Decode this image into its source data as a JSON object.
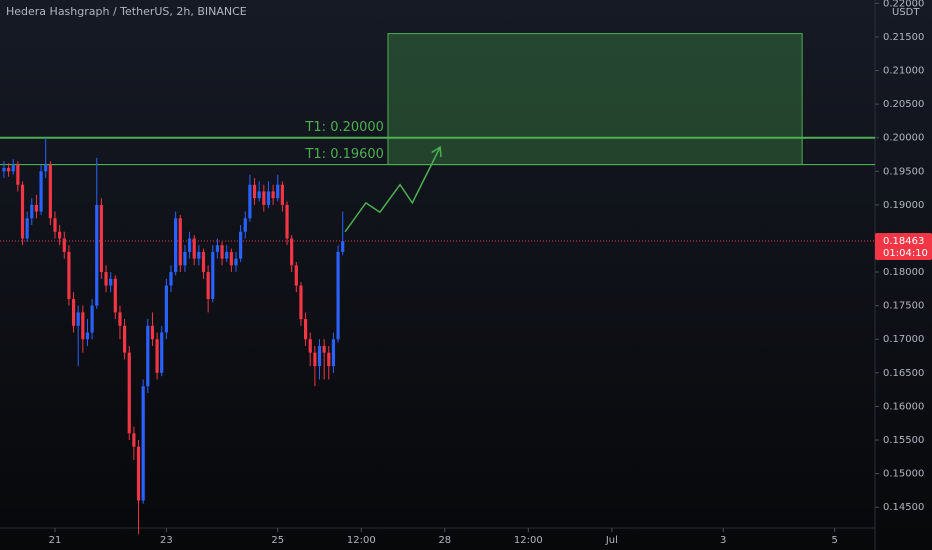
{
  "chart_data": {
    "type": "candlestick",
    "title": "Hedera Hashgraph / TetherUS, 2h, BINANCE",
    "y_axis_label": "USDT",
    "up_color": "#2962ff",
    "down_color": "#f23645",
    "x": [
      -22,
      -20,
      -18,
      -16,
      -14,
      -12,
      -10,
      -8,
      -6,
      -4,
      -2,
      0,
      2,
      4,
      6,
      8,
      10,
      12,
      14,
      16,
      18,
      20,
      22,
      24,
      26,
      28,
      30,
      32,
      34,
      36,
      38,
      40,
      42,
      44,
      46,
      48,
      50,
      52,
      54,
      56,
      58,
      60,
      62,
      64,
      66,
      68,
      70,
      72,
      74,
      76,
      78,
      80,
      82,
      84,
      86,
      88,
      90,
      92,
      94,
      96,
      98,
      100,
      102,
      104,
      106,
      108,
      110,
      112,
      114,
      116,
      118,
      120,
      122,
      124
    ],
    "open": [
      0.195,
      0.1955,
      0.195,
      0.196,
      0.193,
      0.185,
      0.188,
      0.19,
      0.189,
      0.195,
      0.196,
      0.188,
      0.186,
      0.185,
      0.183,
      0.176,
      0.172,
      0.174,
      0.17,
      0.171,
      0.175,
      0.19,
      0.18,
      0.178,
      0.179,
      0.174,
      0.172,
      0.168,
      0.156,
      0.154,
      0.146,
      0.163,
      0.172,
      0.17,
      0.165,
      0.171,
      0.178,
      0.18,
      0.188,
      0.181,
      0.183,
      0.185,
      0.182,
      0.183,
      0.18,
      0.176,
      0.183,
      0.184,
      0.182,
      0.183,
      0.181,
      0.182,
      0.186,
      0.188,
      0.193,
      0.191,
      0.192,
      0.19,
      0.192,
      0.191,
      0.193,
      0.19,
      0.185,
      0.181,
      0.178,
      0.173,
      0.17,
      0.168,
      0.166,
      0.169,
      0.168,
      0.166,
      0.17,
      0.183
    ],
    "high": [
      0.1965,
      0.1962,
      0.1968,
      0.1965,
      0.1935,
      0.189,
      0.191,
      0.1915,
      0.196,
      0.2,
      0.1965,
      0.189,
      0.187,
      0.186,
      0.184,
      0.177,
      0.175,
      0.175,
      0.173,
      0.176,
      0.197,
      0.191,
      0.181,
      0.18,
      0.1795,
      0.175,
      0.173,
      0.169,
      0.157,
      0.155,
      0.164,
      0.173,
      0.174,
      0.171,
      0.172,
      0.179,
      0.181,
      0.189,
      0.1885,
      0.184,
      0.186,
      0.1855,
      0.184,
      0.1835,
      0.181,
      0.184,
      0.185,
      0.1845,
      0.184,
      0.1835,
      0.183,
      0.187,
      0.189,
      0.1945,
      0.194,
      0.1935,
      0.193,
      0.1935,
      0.193,
      0.1945,
      0.1935,
      0.1905,
      0.1855,
      0.1815,
      0.1785,
      0.174,
      0.171,
      0.169,
      0.17,
      0.17,
      0.169,
      0.171,
      0.184,
      0.189
    ],
    "low": [
      0.194,
      0.1942,
      0.1945,
      0.192,
      0.184,
      0.1845,
      0.187,
      0.188,
      0.1885,
      0.194,
      0.187,
      0.185,
      0.184,
      0.182,
      0.175,
      0.171,
      0.166,
      0.168,
      0.169,
      0.17,
      0.1745,
      0.179,
      0.177,
      0.177,
      0.173,
      0.17,
      0.167,
      0.155,
      0.152,
      0.141,
      0.1455,
      0.162,
      0.169,
      0.164,
      0.1645,
      0.17,
      0.177,
      0.1795,
      0.18,
      0.18,
      0.182,
      0.181,
      0.181,
      0.179,
      0.174,
      0.1755,
      0.182,
      0.181,
      0.1815,
      0.18,
      0.18,
      0.1815,
      0.185,
      0.1875,
      0.19,
      0.1905,
      0.189,
      0.1895,
      0.19,
      0.1905,
      0.189,
      0.184,
      0.18,
      0.177,
      0.172,
      0.169,
      0.166,
      0.163,
      0.164,
      0.164,
      0.164,
      0.165,
      0.1695,
      0.1825
    ],
    "close": [
      0.1955,
      0.195,
      0.196,
      0.193,
      0.185,
      0.188,
      0.19,
      0.189,
      0.195,
      0.196,
      0.188,
      0.186,
      0.185,
      0.183,
      0.176,
      0.172,
      0.174,
      0.17,
      0.171,
      0.175,
      0.19,
      0.18,
      0.178,
      0.179,
      0.174,
      0.172,
      0.168,
      0.156,
      0.154,
      0.146,
      0.163,
      0.172,
      0.17,
      0.165,
      0.171,
      0.178,
      0.18,
      0.188,
      0.181,
      0.183,
      0.185,
      0.182,
      0.183,
      0.18,
      0.176,
      0.183,
      0.184,
      0.182,
      0.183,
      0.181,
      0.182,
      0.186,
      0.188,
      0.193,
      0.191,
      0.192,
      0.19,
      0.192,
      0.191,
      0.193,
      0.19,
      0.185,
      0.181,
      0.178,
      0.173,
      0.17,
      0.168,
      0.166,
      0.169,
      0.168,
      0.166,
      0.17,
      0.183,
      0.1846
    ],
    "xlim": [
      -23.7,
      353.4
    ],
    "xticks": [
      {
        "value": 0,
        "label": "21"
      },
      {
        "value": 48,
        "label": "23"
      },
      {
        "value": 96,
        "label": "25"
      },
      {
        "value": 132,
        "label": "12:00"
      },
      {
        "value": 168,
        "label": "28"
      },
      {
        "value": 204,
        "label": "12:00"
      },
      {
        "value": 240,
        "label": "Jul"
      },
      {
        "value": 288,
        "label": "3"
      },
      {
        "value": 336,
        "label": "5"
      }
    ],
    "ylim": [
      0.1419,
      0.2205
    ],
    "yticks": [
      {
        "value": 0.145,
        "label": "0.14500"
      },
      {
        "value": 0.15,
        "label": "0.15000"
      },
      {
        "value": 0.155,
        "label": "0.15500"
      },
      {
        "value": 0.16,
        "label": "0.16000"
      },
      {
        "value": 0.165,
        "label": "0.16500"
      },
      {
        "value": 0.17,
        "label": "0.17000"
      },
      {
        "value": 0.175,
        "label": "0.17500"
      },
      {
        "value": 0.18,
        "label": "0.18000"
      },
      {
        "value": 0.185,
        "label": "0.18500"
      },
      {
        "value": 0.19,
        "label": "0.19000"
      },
      {
        "value": 0.195,
        "label": "0.19500"
      },
      {
        "value": 0.2,
        "label": "0.20000"
      },
      {
        "value": 0.205,
        "label": "0.20500"
      },
      {
        "value": 0.21,
        "label": "0.21000"
      },
      {
        "value": 0.215,
        "label": "0.21500"
      },
      {
        "value": 0.22,
        "label": "0.22000"
      }
    ],
    "levels": [
      {
        "label": "T1: 0.20000",
        "value": 0.2
      },
      {
        "label": "T1: 0.19600",
        "value": 0.196
      }
    ],
    "target_box": {
      "x": [
        143.5,
        322
      ],
      "y": [
        0.196,
        0.2155
      ]
    },
    "projection": {
      "x": [
        125,
        134,
        140,
        148.7,
        154,
        166
      ],
      "y": [
        0.186,
        0.1903,
        0.1889,
        0.193,
        0.1903,
        0.1986
      ]
    },
    "last_price": 0.18463,
    "countdown": "01:04:10"
  }
}
